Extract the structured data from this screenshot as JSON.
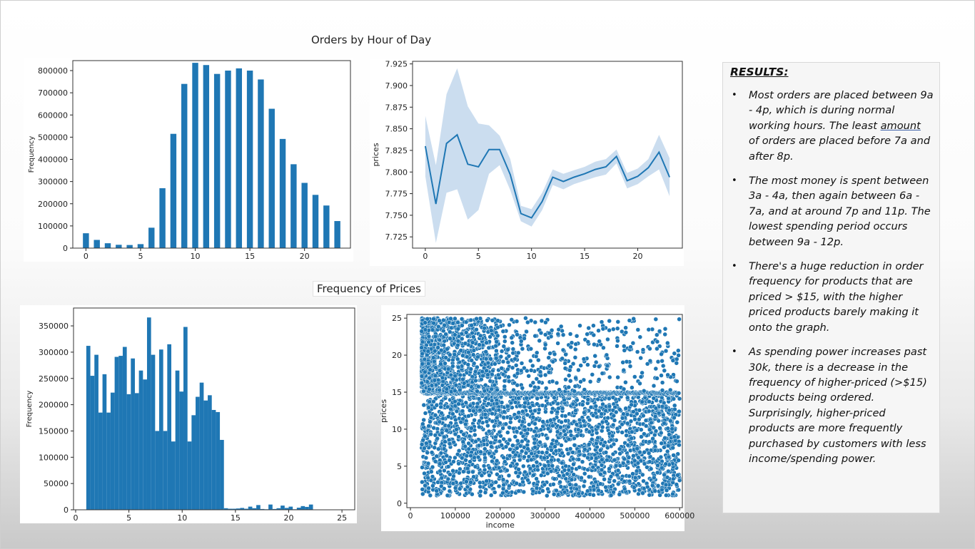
{
  "slide": {
    "title_orders": "Orders by Hour of Day",
    "title_prices": "Frequency of Prices"
  },
  "results": {
    "heading": "RESULTS:",
    "bullets": [
      {
        "pre": "Most orders are placed between 9a - 4p, which is during normal working hours.  The least ",
        "underlined": "amount",
        "post": " of orders are placed before 7a and after 8p."
      },
      {
        "pre": "The most money is spent between 3a - 4a, then again between 6a - 7a, and at around 7p and 11p.  The lowest spending period occurs between 9a - 12p.",
        "underlined": "",
        "post": ""
      },
      {
        "pre": "There's a huge reduction in order frequency for products that are priced > $15, with the higher priced products barely making it onto the graph.",
        "underlined": "",
        "post": ""
      },
      {
        "pre": "As spending power increases past 30k, there is a decrease in the frequency of higher-priced (>$15) products being ordered.  Surprisingly, higher-priced products are more frequently purchased by customers with less income/spending power.",
        "underlined": "",
        "post": ""
      }
    ]
  },
  "chart_data": [
    {
      "id": "orders-hist",
      "type": "bar",
      "xlabel": "",
      "ylabel": "Frequency",
      "x": [
        0,
        1,
        2,
        3,
        4,
        5,
        6,
        7,
        8,
        9,
        10,
        11,
        12,
        13,
        14,
        15,
        16,
        17,
        18,
        19,
        20,
        21,
        22,
        23
      ],
      "values": [
        67000,
        37000,
        22000,
        15000,
        14000,
        18000,
        92000,
        270000,
        515000,
        740000,
        835000,
        825000,
        785000,
        800000,
        810000,
        800000,
        760000,
        628000,
        492000,
        378000,
        294000,
        240000,
        192000,
        122000
      ],
      "xticks": [
        0,
        5,
        10,
        15,
        20
      ],
      "xlim": [
        -1.2,
        24.2
      ],
      "ylim": [
        0,
        845000
      ],
      "yticks": [
        0,
        100000,
        200000,
        300000,
        400000,
        500000,
        600000,
        700000,
        800000
      ],
      "color": "#1f77b4"
    },
    {
      "id": "prices-line",
      "type": "line",
      "xlabel": "",
      "ylabel": "prices",
      "x": [
        0,
        1,
        2,
        3,
        4,
        5,
        6,
        7,
        8,
        9,
        10,
        11,
        12,
        13,
        14,
        15,
        16,
        17,
        18,
        19,
        20,
        21,
        22,
        23
      ],
      "values": [
        7.83,
        7.763,
        7.833,
        7.843,
        7.809,
        7.806,
        7.826,
        7.826,
        7.797,
        7.752,
        7.747,
        7.766,
        7.794,
        7.789,
        7.794,
        7.798,
        7.803,
        7.806,
        7.818,
        7.79,
        7.795,
        7.805,
        7.823,
        7.794
      ],
      "ci_upper": [
        7.865,
        7.808,
        7.89,
        7.92,
        7.876,
        7.856,
        7.854,
        7.842,
        7.815,
        7.761,
        7.757,
        7.776,
        7.803,
        7.798,
        7.802,
        7.806,
        7.812,
        7.815,
        7.826,
        7.799,
        7.804,
        7.815,
        7.843,
        7.816
      ],
      "ci_lower": [
        7.795,
        7.718,
        7.776,
        7.78,
        7.745,
        7.756,
        7.798,
        7.808,
        7.779,
        7.743,
        7.737,
        7.756,
        7.785,
        7.78,
        7.786,
        7.79,
        7.794,
        7.797,
        7.81,
        7.781,
        7.786,
        7.795,
        7.803,
        7.772
      ],
      "xticks": [
        0,
        5,
        10,
        15,
        20
      ],
      "xlim": [
        -1.2,
        24.2
      ],
      "ylim": [
        7.712,
        7.928
      ],
      "yticks": [
        7.725,
        7.75,
        7.775,
        7.8,
        7.825,
        7.85,
        7.875,
        7.9,
        7.925
      ],
      "ytick_labels": [
        "7.725",
        "7.750",
        "7.775",
        "7.800",
        "7.825",
        "7.850",
        "7.875",
        "7.900",
        "7.925"
      ],
      "color": "#1f77b4",
      "band_color": "#b9d1e9"
    },
    {
      "id": "prices-hist",
      "type": "bar",
      "xlabel": "",
      "ylabel": "Frequency",
      "x_start": 1,
      "bin_width": 0.38,
      "values": [
        312000,
        255000,
        295000,
        185000,
        258000,
        185000,
        223000,
        291000,
        293000,
        310000,
        220000,
        288000,
        222000,
        265000,
        248000,
        366000,
        295000,
        150000,
        305000,
        150000,
        315000,
        130000,
        265000,
        225000,
        348000,
        130000,
        180000,
        215000,
        242000,
        208000,
        218000,
        190000,
        186000,
        133000,
        3000,
        2000,
        2000,
        2500,
        3500,
        2000,
        6000,
        3000,
        9000,
        1500,
        1000,
        10000,
        1500,
        3000,
        8000,
        3500,
        6000,
        1000,
        4000,
        7000,
        5500,
        10000
      ],
      "xticks": [
        0,
        5,
        10,
        15,
        20,
        25
      ],
      "xlim": [
        -0.2,
        26.2
      ],
      "ylim": [
        0,
        384000
      ],
      "yticks": [
        0,
        50000,
        100000,
        150000,
        200000,
        250000,
        300000,
        350000
      ],
      "color": "#1f77b4"
    },
    {
      "id": "income-scatter",
      "type": "scatter",
      "xlabel": "income",
      "ylabel": "prices",
      "x_range": [
        25000,
        600000
      ],
      "y_range": [
        1,
        25
      ],
      "xticks": [
        0,
        100000,
        200000,
        300000,
        400000,
        500000,
        600000
      ],
      "xlim": [
        -8000,
        606000
      ],
      "ylim": [
        -0.6,
        25.5
      ],
      "yticks": [
        0,
        5,
        10,
        15,
        20,
        25
      ],
      "color": "#1f77b4",
      "edge_color": "#ffffff"
    }
  ]
}
